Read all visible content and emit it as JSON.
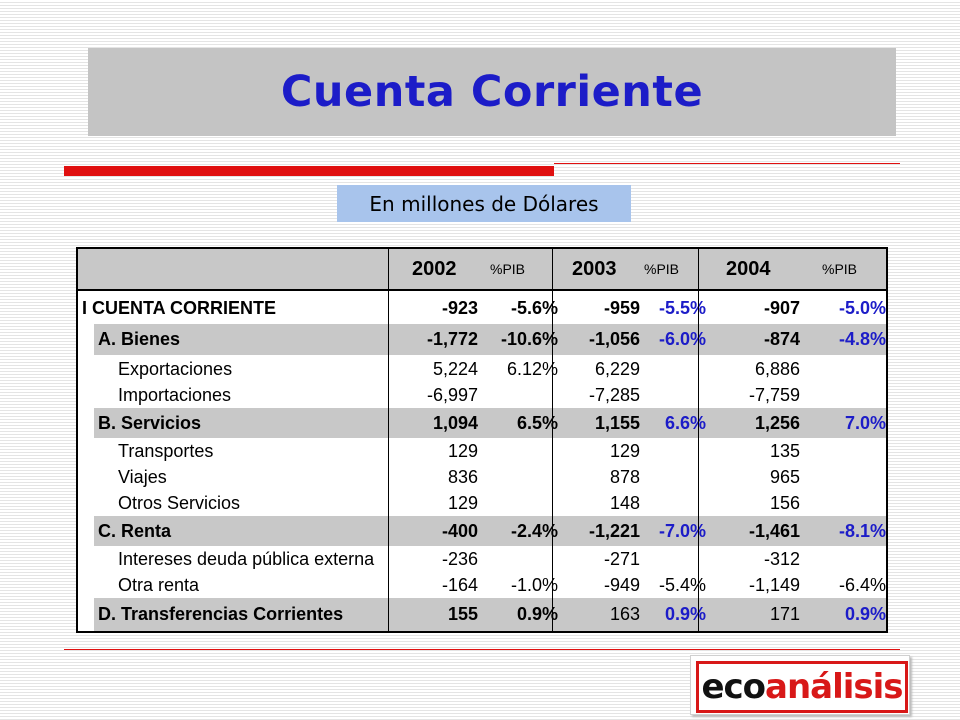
{
  "slide": {
    "title": "Cuenta Corriente",
    "subtitle": "En millones de Dólares"
  },
  "table": {
    "header": {
      "y2002": "2002",
      "pib1": "%PIB",
      "y2003": "2003",
      "pib2": "%PIB",
      "y2004": "2004",
      "pib3": "%PIB"
    },
    "rows": [
      {
        "label": "I CUENTA CORRIENTE",
        "v2002": "-923",
        "p2002": "-5.6%",
        "v2003": "-959",
        "p2003": "-5.5%",
        "v2004": "-907",
        "p2004": "-5.0%"
      },
      {
        "label": "A. Bienes",
        "v2002": "-1,772",
        "p2002": "-10.6%",
        "v2003": "-1,056",
        "p2003": "-6.0%",
        "v2004": "-874",
        "p2004": "-4.8%"
      },
      {
        "label": "Exportaciones",
        "v2002": "5,224",
        "p2002": "6.12%",
        "v2003": "6,229",
        "p2003": "",
        "v2004": "6,886",
        "p2004": ""
      },
      {
        "label": "Importaciones",
        "v2002": "-6,997",
        "p2002": "",
        "v2003": "-7,285",
        "p2003": "",
        "v2004": "-7,759",
        "p2004": ""
      },
      {
        "label": "B. Servicios",
        "v2002": "1,094",
        "p2002": "6.5%",
        "v2003": "1,155",
        "p2003": "6.6%",
        "v2004": "1,256",
        "p2004": "7.0%"
      },
      {
        "label": "Transportes",
        "v2002": "129",
        "p2002": "",
        "v2003": "129",
        "p2003": "",
        "v2004": "135",
        "p2004": ""
      },
      {
        "label": "Viajes",
        "v2002": "836",
        "p2002": "",
        "v2003": "878",
        "p2003": "",
        "v2004": "965",
        "p2004": ""
      },
      {
        "label": "Otros Servicios",
        "v2002": "129",
        "p2002": "",
        "v2003": "148",
        "p2003": "",
        "v2004": "156",
        "p2004": ""
      },
      {
        "label": "C. Renta",
        "v2002": "-400",
        "p2002": "-2.4%",
        "v2003": "-1,221",
        "p2003": "-7.0%",
        "v2004": "-1,461",
        "p2004": "-8.1%"
      },
      {
        "label": "Intereses deuda pública externa",
        "v2002": "-236",
        "p2002": "",
        "v2003": "-271",
        "p2003": "",
        "v2004": "-312",
        "p2004": ""
      },
      {
        "label": "Otra renta",
        "v2002": "-164",
        "p2002": "-1.0%",
        "v2003": "-949",
        "p2003": "-5.4%",
        "v2004": "-1,149",
        "p2004": "-6.4%"
      },
      {
        "label": "D. Transferencias Corrientes",
        "v2002": "155",
        "p2002": "0.9%",
        "v2003": "163",
        "p2003": "0.9%",
        "v2004": "171",
        "p2004": "0.9%"
      }
    ]
  },
  "logo": {
    "text_a": "eco",
    "text_b": "análisis"
  },
  "colors": {
    "title": "#1c1cc8",
    "accent_red": "#e01010",
    "subtitle_bg": "#a8c4ec",
    "band_gray": "#c8c8c8",
    "pib_blue": "#1c1cc8"
  }
}
